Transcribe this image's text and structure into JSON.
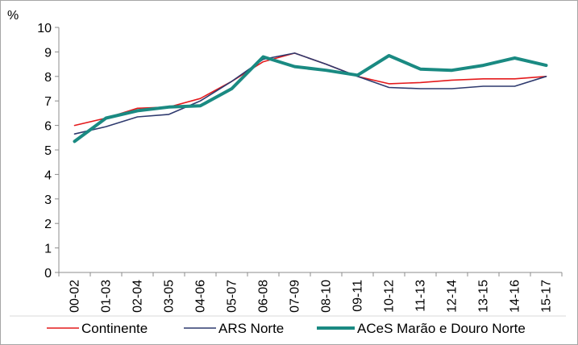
{
  "chart_data": {
    "type": "line",
    "ylabel": "%",
    "ylim": [
      0,
      10
    ],
    "y_ticks": [
      "0",
      "1",
      "2",
      "3",
      "4",
      "5",
      "6",
      "7",
      "8",
      "9",
      "10"
    ],
    "categories": [
      "00-02",
      "01-03",
      "02-04",
      "03-05",
      "04-06",
      "05-07",
      "06-08",
      "07-09",
      "08-10",
      "09-11",
      "10-12",
      "11-13",
      "12-14",
      "13-15",
      "14-16",
      "15-17"
    ],
    "grid": false,
    "legend_position": "bottom",
    "series": [
      {
        "name": "Continente",
        "color": "#e41a1c",
        "values": [
          6.0,
          6.3,
          6.7,
          6.75,
          7.1,
          7.8,
          8.6,
          8.95,
          8.5,
          8.0,
          7.7,
          7.75,
          7.85,
          7.9,
          7.9,
          8.0
        ]
      },
      {
        "name": "ARS Norte",
        "color": "#2e3a6e",
        "values": [
          5.65,
          5.95,
          6.35,
          6.45,
          7.0,
          7.8,
          8.7,
          8.95,
          8.5,
          8.0,
          7.55,
          7.5,
          7.5,
          7.6,
          7.6,
          8.0
        ]
      },
      {
        "name": "ACeS Marão e Douro Norte",
        "color": "#1a8a82",
        "values": [
          5.35,
          6.3,
          6.6,
          6.75,
          6.8,
          7.5,
          8.8,
          8.4,
          8.25,
          8.05,
          8.85,
          8.3,
          8.25,
          8.45,
          8.75,
          8.45
        ]
      }
    ]
  }
}
